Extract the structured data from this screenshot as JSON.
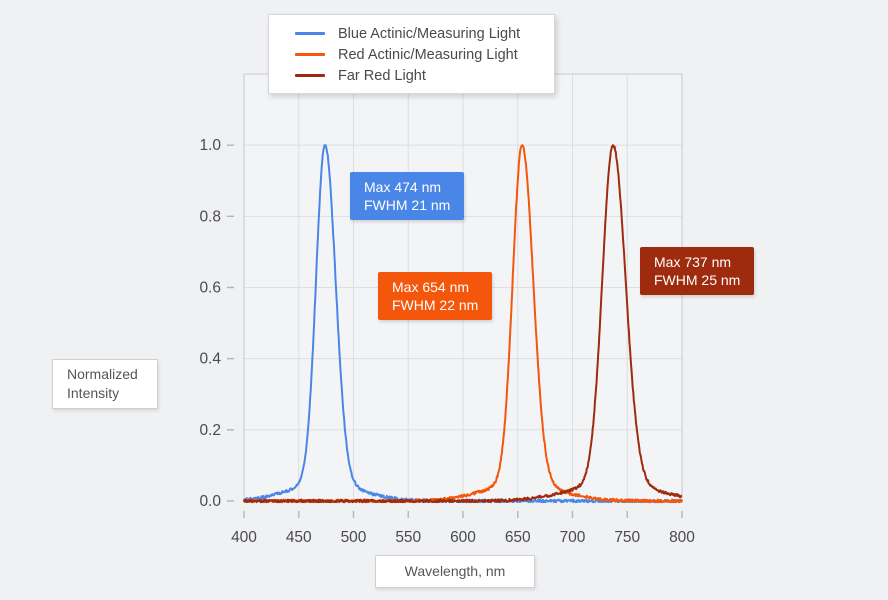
{
  "page": {
    "background": "#f0f1f3",
    "plot_background": "#f3f4f6"
  },
  "legend": {
    "items": [
      {
        "label": "Blue Actinic/Measuring Light",
        "color": "#4a86e8"
      },
      {
        "label": "Red Actinic/Measuring Light",
        "color": "#f4560b"
      },
      {
        "label": "Far Red Light",
        "color": "#9e2b0e"
      }
    ]
  },
  "annotations": [
    {
      "lines": [
        "Max 474 nm",
        "FWHM 21 nm"
      ],
      "color": "#4a86e8"
    },
    {
      "lines": [
        "Max 654 nm",
        "FWHM 22 nm"
      ],
      "color": "#f4560b"
    },
    {
      "lines": [
        "Max 737 nm",
        "FWHM 25 nm"
      ],
      "color": "#9e2b0e"
    }
  ],
  "axis_boxes": {
    "y_label_line1": "Normalized",
    "y_label_line2": "Intensity",
    "x_label": "Wavelength, nm"
  },
  "chart_data": {
    "type": "line",
    "title": "",
    "xlabel": "Wavelength, nm",
    "ylabel": "Normalized Intensity",
    "xlim": [
      400,
      800
    ],
    "ylim": [
      0,
      1.2
    ],
    "x_ticks": [
      400,
      450,
      500,
      550,
      600,
      650,
      700,
      750,
      800
    ],
    "y_ticks": [
      0.0,
      0.2,
      0.4,
      0.6,
      0.8,
      1.0
    ],
    "grid": true,
    "legend_position": "top-center",
    "colors": {
      "grid": "#dededf",
      "plot_border": "#c8c9cc",
      "tick": "#b4b5b8",
      "tick_label": "#4b4b4f"
    },
    "series": [
      {
        "name": "Blue Actinic/Measuring Light",
        "color": "#4a86e8",
        "peak_nm": 474,
        "fwhm_nm": 21,
        "max_intensity": 1.0
      },
      {
        "name": "Red Actinic/Measuring Light",
        "color": "#f4560b",
        "peak_nm": 654,
        "fwhm_nm": 22,
        "max_intensity": 1.0
      },
      {
        "name": "Far Red Light",
        "color": "#9e2b0e",
        "peak_nm": 737,
        "fwhm_nm": 25,
        "max_intensity": 1.0
      }
    ]
  }
}
